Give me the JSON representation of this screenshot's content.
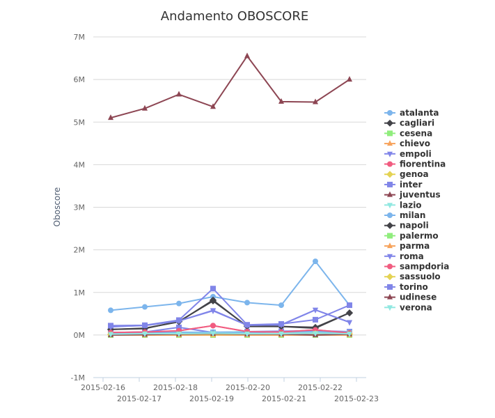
{
  "chart_data": {
    "type": "line",
    "title": "Andamento OBOSCORE",
    "xlabel": "",
    "ylabel": "Oboscore",
    "ylim": [
      -1000000,
      7000000
    ],
    "y_ticks": [
      "-1M",
      "0M",
      "1M",
      "2M",
      "3M",
      "4M",
      "5M",
      "6M",
      "7M"
    ],
    "x_ticks": [
      "2015-02-16",
      "2015-02-17",
      "2015-02-18",
      "2015-02-19",
      "2015-02-20",
      "2015-02-21",
      "2015-02-22",
      "2015-02-23"
    ],
    "grid": true,
    "legend_position": "right",
    "x": [
      "2015-02-16",
      "2015-02-17",
      "2015-02-18",
      "2015-02-19",
      "2015-02-20",
      "2015-02-21",
      "2015-02-22",
      "2015-02-23"
    ],
    "series": [
      {
        "name": "atalanta",
        "color": "#7cb5ec",
        "marker": "circle",
        "values": [
          580000,
          660000,
          740000,
          900000,
          760000,
          700000,
          1730000,
          700000
        ]
      },
      {
        "name": "cagliari",
        "color": "#434348",
        "marker": "diamond",
        "values": [
          130000,
          150000,
          320000,
          800000,
          210000,
          200000,
          180000,
          520000
        ]
      },
      {
        "name": "cesena",
        "color": "#90ed7d",
        "marker": "square",
        "values": [
          0,
          0,
          0,
          0,
          0,
          0,
          0,
          0
        ]
      },
      {
        "name": "chievo",
        "color": "#f7a35c",
        "marker": "triangle",
        "values": [
          20000,
          30000,
          30000,
          50000,
          40000,
          30000,
          50000,
          40000
        ]
      },
      {
        "name": "empoli",
        "color": "#8085e9",
        "marker": "triangle-down",
        "values": [
          200000,
          220000,
          330000,
          570000,
          230000,
          240000,
          590000,
          300000
        ]
      },
      {
        "name": "fiorentina",
        "color": "#f15c80",
        "marker": "circle",
        "values": [
          60000,
          70000,
          100000,
          220000,
          80000,
          70000,
          120000,
          50000
        ]
      },
      {
        "name": "genoa",
        "color": "#e4d354",
        "marker": "diamond",
        "values": [
          10000,
          10000,
          20000,
          20000,
          20000,
          20000,
          20000,
          20000
        ]
      },
      {
        "name": "inter",
        "color": "#8085e8",
        "marker": "square",
        "values": [
          60000,
          70000,
          180000,
          60000,
          80000,
          90000,
          100000,
          80000
        ]
      },
      {
        "name": "juventus",
        "color": "#8d4653",
        "marker": "triangle",
        "values": [
          5100000,
          5320000,
          5650000,
          5360000,
          6550000,
          5480000,
          5470000,
          6000000
        ]
      },
      {
        "name": "lazio",
        "color": "#91e8e1",
        "marker": "triangle-down",
        "values": [
          50000,
          60000,
          70000,
          60000,
          80000,
          70000,
          60000,
          70000
        ]
      },
      {
        "name": "milan",
        "color": "#7cb5ec",
        "marker": "circle",
        "values": [
          40000,
          50000,
          60000,
          70000,
          60000,
          70000,
          80000,
          60000
        ]
      },
      {
        "name": "napoli",
        "color": "#434348",
        "marker": "diamond",
        "values": [
          130000,
          160000,
          310000,
          820000,
          200000,
          200000,
          160000,
          520000
        ]
      },
      {
        "name": "palermo",
        "color": "#90ed7d",
        "marker": "square",
        "values": [
          10000,
          10000,
          10000,
          20000,
          20000,
          10000,
          20000,
          20000
        ]
      },
      {
        "name": "parma",
        "color": "#f7a35c",
        "marker": "triangle",
        "values": [
          0,
          0,
          0,
          0,
          0,
          0,
          0,
          0
        ]
      },
      {
        "name": "roma",
        "color": "#8085e9",
        "marker": "triangle-down",
        "values": [
          190000,
          230000,
          330000,
          580000,
          230000,
          240000,
          590000,
          300000
        ]
      },
      {
        "name": "sampdoria",
        "color": "#f15c80",
        "marker": "circle",
        "values": [
          60000,
          70000,
          100000,
          220000,
          80000,
          70000,
          120000,
          50000
        ]
      },
      {
        "name": "sassuolo",
        "color": "#e4d354",
        "marker": "diamond",
        "values": [
          10000,
          20000,
          20000,
          20000,
          20000,
          20000,
          30000,
          20000
        ]
      },
      {
        "name": "torino",
        "color": "#8085e8",
        "marker": "square",
        "values": [
          220000,
          230000,
          350000,
          1090000,
          240000,
          260000,
          360000,
          700000
        ]
      },
      {
        "name": "udinese",
        "color": "#8d4653",
        "marker": "triangle",
        "values": [
          0,
          10000,
          20000,
          30000,
          20000,
          20000,
          0,
          20000
        ]
      },
      {
        "name": "verona",
        "color": "#91e8e1",
        "marker": "triangle-down",
        "values": [
          20000,
          30000,
          30000,
          40000,
          30000,
          30000,
          40000,
          30000
        ]
      }
    ]
  }
}
